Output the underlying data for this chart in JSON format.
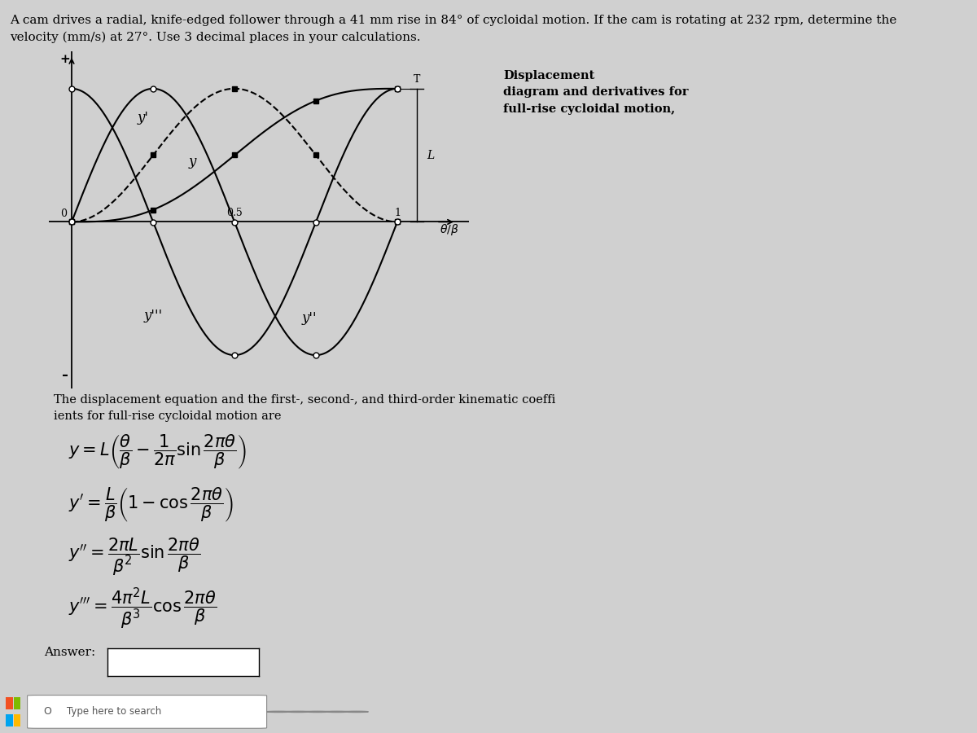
{
  "title_line1": "A cam drives a radial, knife-edged follower through a 41 mm rise in 84° of cycloidal motion. If the cam is rotating at 232 rpm, determine the",
  "title_line2": "velocity (mm/s) at 27°. Use 3 decimal places in your calculations.",
  "diagram_title_line1": "Displacement",
  "diagram_title_line2": "diagram and derivatives for",
  "diagram_title_line3": "full-rise cycloidal motion,",
  "bg_color": "#d0d0d0",
  "plot_bg": "#c0c0c0",
  "text_color": "#000000",
  "answer_label": "Answer:",
  "desc_line1": "The displacement equation and the first-, second-, and third-order kinematic coeffi",
  "desc_line2": "ients for full-rise cycloidal motion are"
}
